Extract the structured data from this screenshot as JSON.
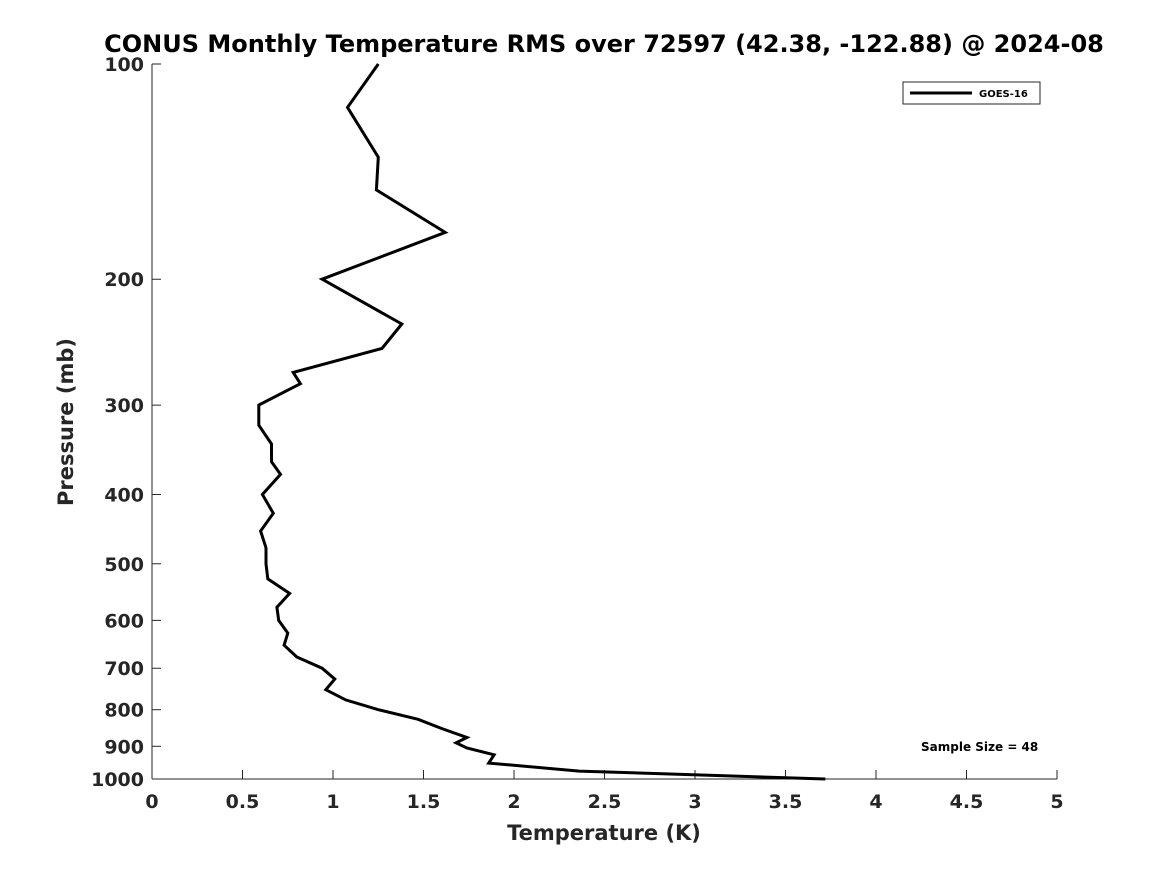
{
  "chart_data": {
    "type": "line",
    "title": "CONUS Monthly Temperature RMS over 72597 (42.38, -122.88) @ 2024-08",
    "xlabel": "Temperature (K)",
    "ylabel": "Pressure (mb)",
    "xlim": [
      0,
      5
    ],
    "ylim": [
      1000,
      100
    ],
    "y_scale": "log",
    "y_reversed": true,
    "grid": false,
    "legend_position": "top-right",
    "x_ticks": [
      0,
      0.5,
      1,
      1.5,
      2,
      2.5,
      3,
      3.5,
      4,
      4.5,
      5
    ],
    "x_tick_labels": [
      "0",
      "0.5",
      "1",
      "1.5",
      "2",
      "2.5",
      "3",
      "3.5",
      "4",
      "4.5",
      "5"
    ],
    "y_ticks": [
      100,
      200,
      300,
      400,
      500,
      600,
      700,
      800,
      900,
      1000
    ],
    "y_tick_labels": [
      "100",
      "200",
      "300",
      "400",
      "500",
      "600",
      "700",
      "800",
      "900",
      "1000"
    ],
    "annotation": "Sample Size = 48",
    "series": [
      {
        "name": "GOES-16",
        "color": "#000000",
        "x": [
          1.25,
          1.08,
          1.25,
          1.24,
          1.62,
          0.94,
          1.38,
          1.27,
          0.78,
          0.82,
          0.59,
          0.59,
          0.66,
          0.66,
          0.71,
          0.61,
          0.67,
          0.6,
          0.63,
          0.63,
          0.64,
          0.76,
          0.69,
          0.7,
          0.75,
          0.73,
          0.8,
          0.94,
          1.01,
          0.96,
          1.07,
          1.25,
          1.47,
          1.6,
          1.74,
          1.68,
          1.74,
          1.89,
          1.86,
          2.36,
          3.72
        ],
        "y": [
          100,
          115,
          135,
          150,
          172,
          200,
          231,
          250,
          270,
          280,
          300,
          320,
          340,
          360,
          375,
          400,
          425,
          450,
          475,
          500,
          525,
          550,
          575,
          600,
          625,
          650,
          675,
          700,
          725,
          750,
          775,
          800,
          825,
          850,
          875,
          890,
          905,
          925,
          950,
          975,
          1000
        ]
      }
    ]
  }
}
